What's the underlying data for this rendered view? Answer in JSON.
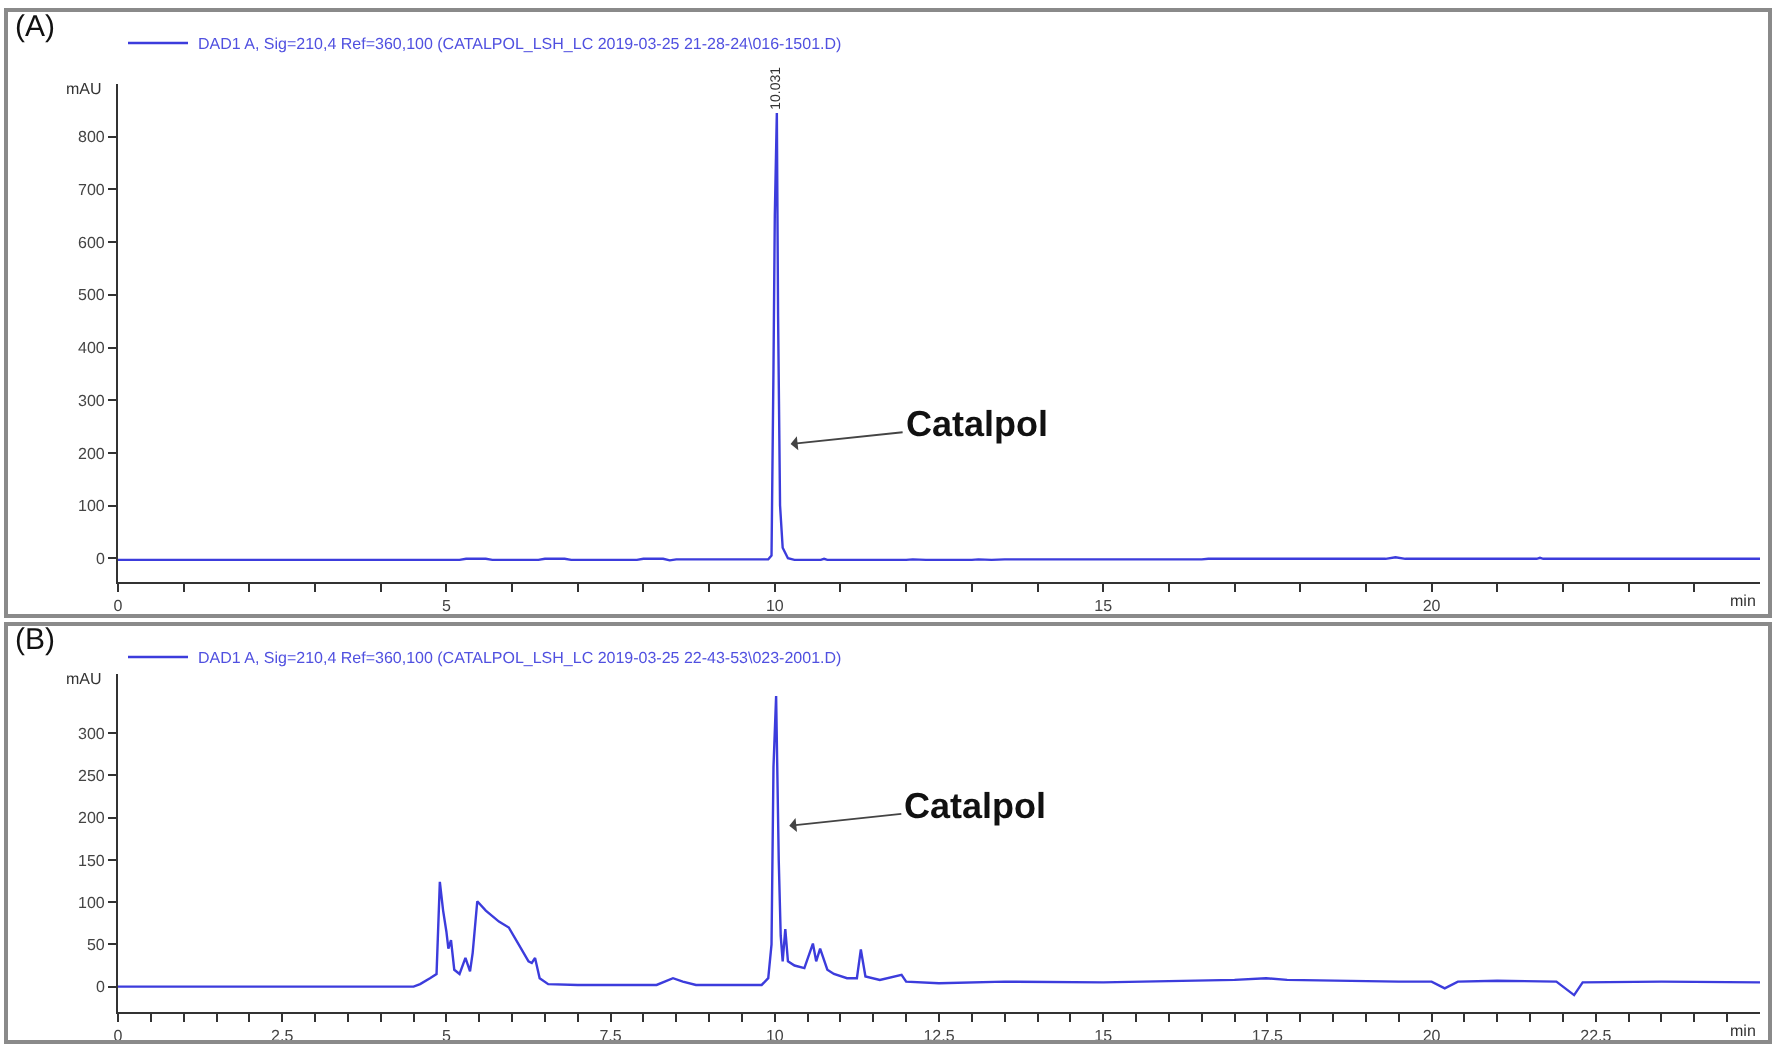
{
  "chart_data": [
    {
      "type": "line",
      "title": "(A)",
      "xlabel": "min",
      "ylabel": "mAU",
      "legend": "top left",
      "line_style": "solid",
      "series": [
        {
          "name": "DAD1 A, Sig=210,4 Ref=360,100 (CATALPOL_LSH_LC 2019-03-25 21-28-24\\016-1501.D)",
          "color": "#3c3cdc",
          "x": [
            0,
            5.2,
            5.3,
            5.6,
            5.7,
            6.4,
            6.5,
            6.8,
            6.9,
            7.9,
            8.0,
            8.3,
            8.4,
            8.5,
            9.9,
            9.95,
            9.98,
            10.0,
            10.031,
            10.05,
            10.08,
            10.12,
            10.2,
            10.3,
            10.7,
            10.75,
            10.8,
            12.0,
            12.1,
            12.3,
            13.0,
            13.1,
            13.3,
            13.5,
            16.5,
            16.6,
            19.3,
            19.45,
            19.6,
            21.6,
            21.65,
            21.7,
            25
          ],
          "values": [
            -3,
            -3,
            -1,
            -1,
            -3,
            -3,
            -1,
            -1,
            -3,
            -3,
            -1,
            -1,
            -4,
            -2,
            -2,
            5,
            360,
            650,
            845,
            460,
            100,
            20,
            0,
            -3,
            -3,
            -1,
            -3,
            -3,
            -2,
            -3,
            -3,
            -2,
            -3,
            -2,
            -2,
            -1,
            -1,
            2,
            -1,
            -1,
            1,
            -1,
            -1
          ]
        }
      ],
      "xlim": [
        0,
        25
      ],
      "ylim": [
        -45,
        900
      ],
      "xticks": [
        0,
        {
          "value": 1,
          "label": null
        },
        {
          "value": 2,
          "label": null
        },
        {
          "value": 3,
          "label": null
        },
        {
          "value": 4,
          "label": null
        },
        5,
        {
          "value": 6,
          "label": null
        },
        {
          "value": 7,
          "label": null
        },
        {
          "value": 8,
          "label": null
        },
        {
          "value": 9,
          "label": null
        },
        10,
        {
          "value": 11,
          "label": null
        },
        {
          "value": 12,
          "label": null
        },
        {
          "value": 13,
          "label": null
        },
        {
          "value": 14,
          "label": null
        },
        15,
        {
          "value": 16,
          "label": null
        },
        {
          "value": 17,
          "label": null
        },
        {
          "value": 18,
          "label": null
        },
        {
          "value": 19,
          "label": null
        },
        20,
        {
          "value": 21,
          "label": null
        },
        {
          "value": 22,
          "label": null
        },
        {
          "value": 23,
          "label": null
        },
        {
          "value": 24,
          "label": null
        }
      ],
      "yticks": [
        0,
        100,
        200,
        300,
        400,
        500,
        600,
        700,
        800
      ],
      "annotations": [
        {
          "text": "10.031",
          "x": 10.031,
          "y": 845
        },
        {
          "text": "Catalpol",
          "x": 10.18,
          "y": 216
        }
      ]
    },
    {
      "type": "line",
      "title": "(B)",
      "xlabel": "min",
      "ylabel": "mAU",
      "legend": "top left",
      "line_style": "solid",
      "series": [
        {
          "name": "DAD1 A, Sig=210,4 Ref=360,100 (CATALPOL_LSH_LC 2019-03-25 22-43-53\\023-2001.D)",
          "color": "#3c3cdc",
          "x": [
            0,
            4.5,
            4.6,
            4.75,
            4.85,
            4.9,
            4.95,
            5.0,
            5.03,
            5.07,
            5.12,
            5.2,
            5.29,
            5.36,
            5.4,
            5.47,
            5.6,
            5.8,
            5.95,
            6.1,
            6.25,
            6.3,
            6.35,
            6.42,
            6.55,
            7.0,
            8.2,
            8.45,
            8.6,
            8.8,
            9.8,
            9.9,
            9.95,
            9.98,
            10.02,
            10.06,
            10.09,
            10.12,
            10.16,
            10.2,
            10.3,
            10.45,
            10.58,
            10.63,
            10.69,
            10.8,
            10.9,
            11.1,
            11.25,
            11.31,
            11.38,
            11.6,
            11.93,
            12.0,
            12.5,
            13.5,
            15.0,
            17.0,
            17.48,
            17.8,
            19.5,
            20.0,
            20.2,
            20.4,
            21.0,
            21.9,
            22.17,
            22.3,
            23.5,
            25
          ],
          "values": [
            0,
            0,
            3,
            10,
            15,
            124,
            90,
            65,
            45,
            55,
            20,
            15,
            34,
            18,
            40,
            101,
            90,
            77,
            70,
            50,
            30,
            28,
            34,
            10,
            3,
            2,
            2,
            10,
            6,
            2,
            2,
            10,
            50,
            260,
            344,
            150,
            60,
            30,
            68,
            30,
            25,
            22,
            51,
            30,
            45,
            20,
            15,
            10,
            10,
            44,
            12,
            8,
            14,
            6,
            4,
            6,
            5,
            8,
            10,
            8,
            6,
            6,
            -2,
            6,
            7,
            6,
            -10,
            5,
            6,
            5
          ]
        }
      ],
      "xlim": [
        0,
        25
      ],
      "ylim": [
        -30,
        370
      ],
      "xticks": [
        0,
        {
          "value": 0.5,
          "label": null
        },
        {
          "value": 1,
          "label": null
        },
        {
          "value": 1.5,
          "label": null
        },
        {
          "value": 2,
          "label": null
        },
        2.5,
        {
          "value": 3,
          "label": null
        },
        {
          "value": 3.5,
          "label": null
        },
        {
          "value": 4,
          "label": null
        },
        {
          "value": 4.5,
          "label": null
        },
        5,
        {
          "value": 5.5,
          "label": null
        },
        {
          "value": 6,
          "label": null
        },
        {
          "value": 6.5,
          "label": null
        },
        {
          "value": 7,
          "label": null
        },
        7.5,
        {
          "value": 8,
          "label": null
        },
        {
          "value": 8.5,
          "label": null
        },
        {
          "value": 9,
          "label": null
        },
        {
          "value": 9.5,
          "label": null
        },
        10,
        {
          "value": 10.5,
          "label": null
        },
        {
          "value": 11,
          "label": null
        },
        {
          "value": 11.5,
          "label": null
        },
        {
          "value": 12,
          "label": null
        },
        12.5,
        {
          "value": 13,
          "label": null
        },
        {
          "value": 13.5,
          "label": null
        },
        {
          "value": 14,
          "label": null
        },
        {
          "value": 14.5,
          "label": null
        },
        15,
        {
          "value": 15.5,
          "label": null
        },
        {
          "value": 16,
          "label": null
        },
        {
          "value": 16.5,
          "label": null
        },
        {
          "value": 17,
          "label": null
        },
        17.5,
        {
          "value": 18,
          "label": null
        },
        {
          "value": 18.5,
          "label": null
        },
        {
          "value": 19,
          "label": null
        },
        {
          "value": 19.5,
          "label": null
        },
        20,
        {
          "value": 20.5,
          "label": null
        },
        {
          "value": 21,
          "label": null
        },
        {
          "value": 21.5,
          "label": null
        },
        {
          "value": 22,
          "label": null
        },
        22.5,
        {
          "value": 23,
          "label": null
        },
        {
          "value": 23.5,
          "label": null
        },
        {
          "value": 24,
          "label": null
        },
        {
          "value": 24.5,
          "label": null
        }
      ],
      "yticks": [
        0,
        50,
        100,
        150,
        200,
        250,
        300
      ],
      "annotations": [
        {
          "text": "Catalpol",
          "x": 10.16,
          "y": 190
        }
      ]
    }
  ]
}
